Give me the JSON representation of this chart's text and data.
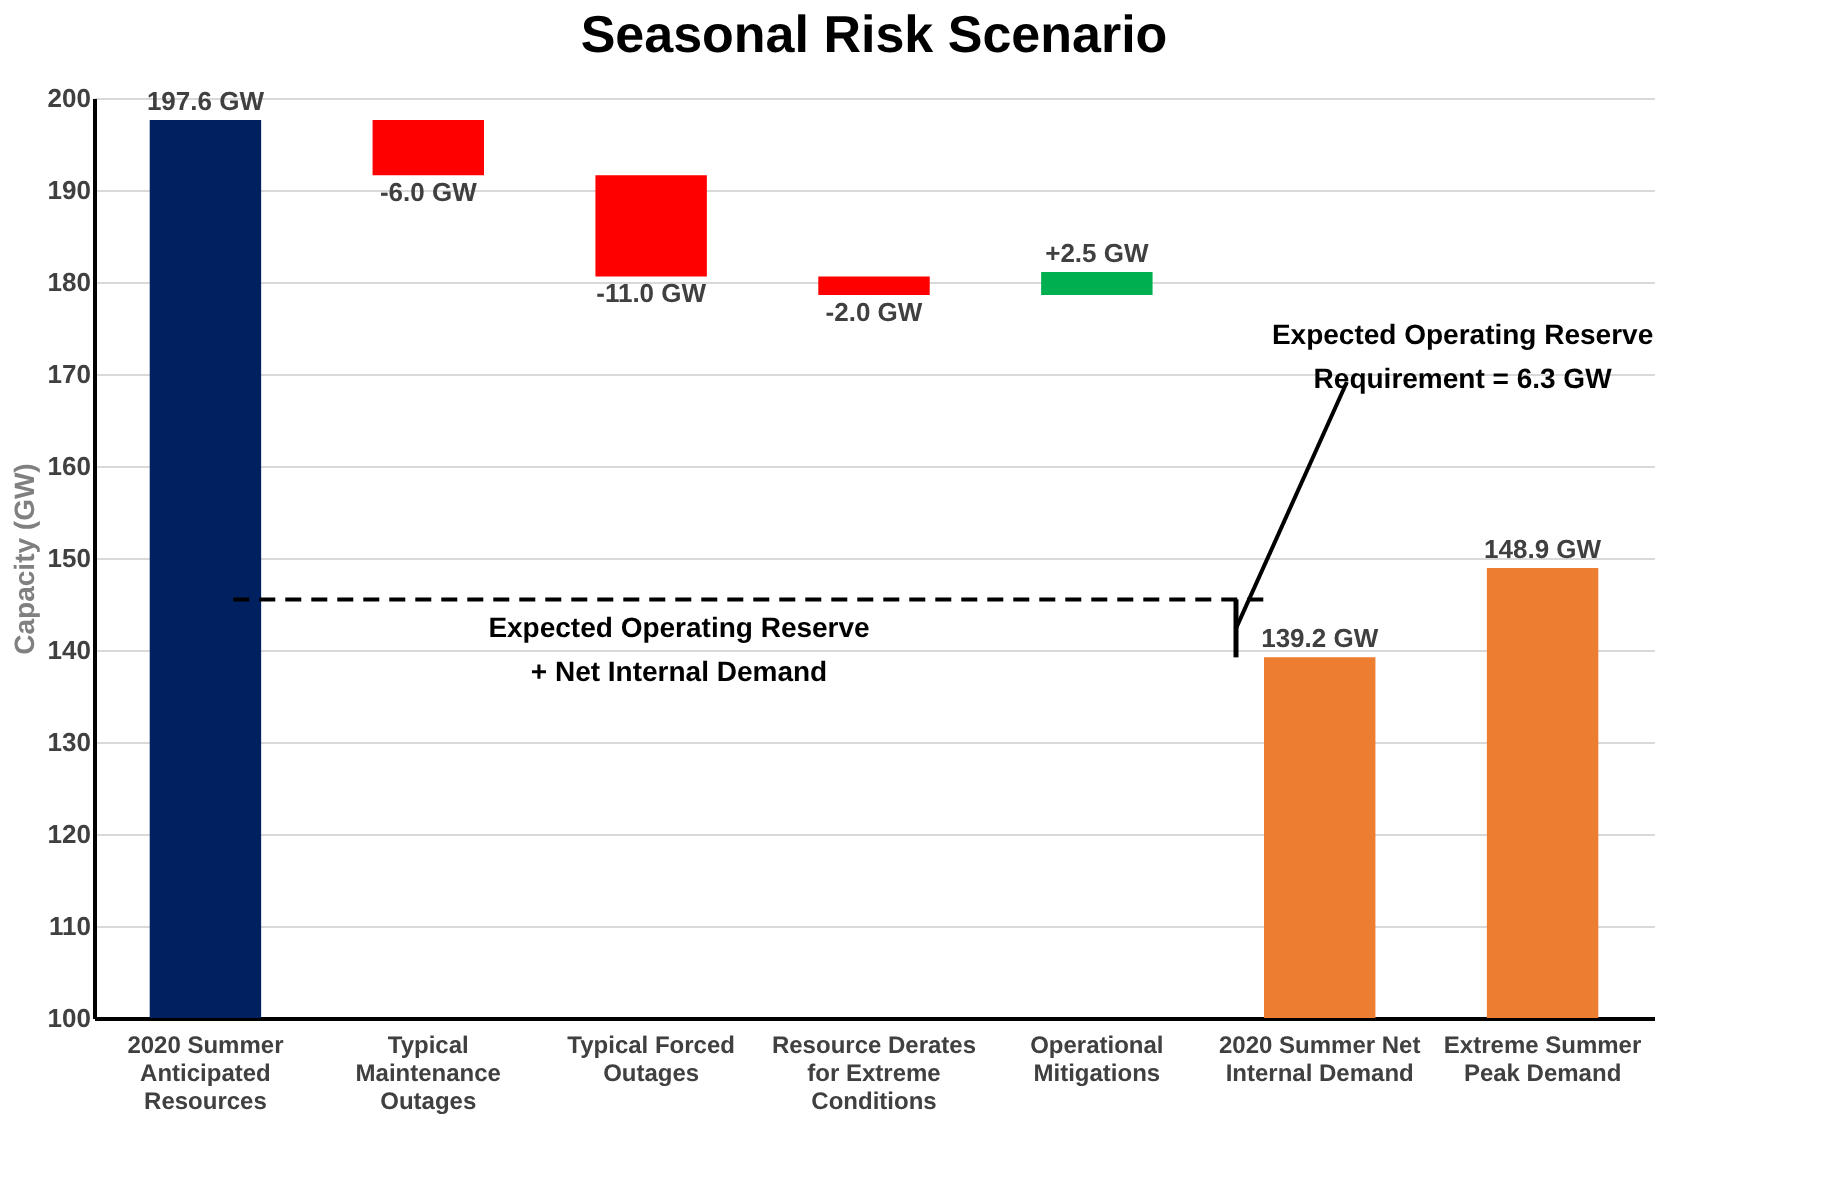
{
  "chart_data": {
    "type": "bar",
    "title": "Seasonal Risk Scenario",
    "ylabel": "Capacity (GW)",
    "categories": [
      "2020 Summer Anticipated Resources",
      "Typical Maintenance Outages",
      "Typical Forced Outages",
      "Resource Derates for Extreme Conditions",
      "Operational Mitigations",
      "2020 Summer Net Internal Demand",
      "Extreme Summer Peak Demand"
    ],
    "values": [
      97.6,
      -6.0,
      -11.0,
      -2.0,
      2.5,
      39.2,
      48.9
    ],
    "base": [
      100,
      197.6,
      191.6,
      180.6,
      178.6,
      100,
      100
    ],
    "colors": [
      "#002060",
      "#ff0000",
      "#ff0000",
      "#ff0000",
      "#00b050",
      "#ed7d31",
      "#ed7d31"
    ],
    "value_labels": [
      "197.6 GW",
      "-6.0 GW",
      "-11.0 GW",
      "-2.0 GW",
      "+2.5 GW",
      "139.2 GW",
      "148.9 GW"
    ],
    "ylim": [
      100,
      200
    ],
    "yticks": [
      100,
      110,
      120,
      130,
      140,
      150,
      160,
      170,
      180,
      190,
      200
    ],
    "grid": "y",
    "ref_lines": [
      {
        "axis": "y",
        "value": 145.5,
        "label": "Expected Operating Reserve\n+ Net Internal Demand",
        "line_style": "dashed",
        "color": "#000000"
      }
    ],
    "annotations": [
      "Expected Operating Reserve\nRequirement = 6.3 GW"
    ]
  }
}
